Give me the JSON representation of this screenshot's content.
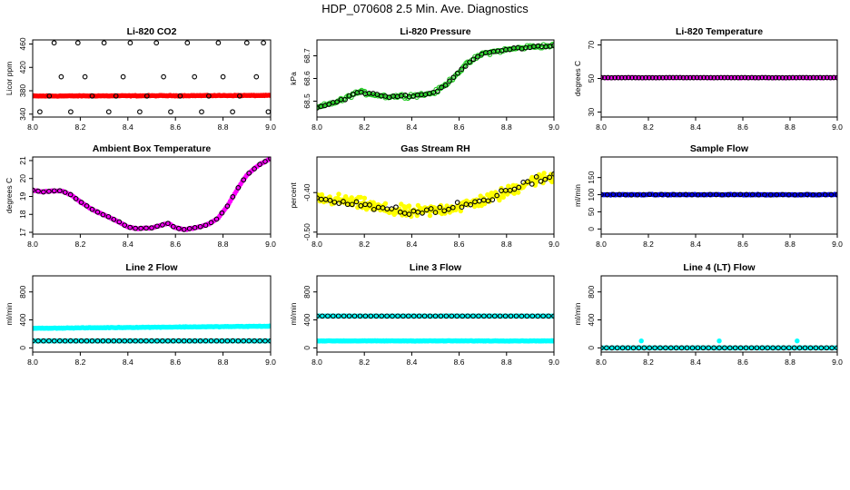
{
  "title": "HDP_070608  2.5 Min. Ave. Diagnostics",
  "chart_data": [
    {
      "type": "scatter",
      "title": "Li-820 CO2",
      "ylabel": "Licor ppm",
      "xlim": [
        8.0,
        9.0
      ],
      "xticks": [
        8.0,
        8.2,
        8.4,
        8.6,
        8.8,
        9.0
      ],
      "xtick_labels": [
        "8.0",
        "8.2",
        "8.4",
        "8.6",
        "8.8",
        "9.0"
      ],
      "ylim": [
        335,
        467
      ],
      "yticks": [
        340,
        380,
        420,
        460
      ],
      "ytick_labels": [
        "340",
        "380",
        "420",
        "460"
      ],
      "series": [
        {
          "name": "red",
          "color": "#ff0000",
          "style": "filled",
          "n": 200,
          "y0": 371,
          "y1": 372,
          "noise": 0.8
        },
        {
          "name": "black",
          "color": "#000000",
          "style": "open",
          "values_x": [
            8.03,
            8.07,
            8.09,
            8.12,
            8.16,
            8.19,
            8.22,
            8.25,
            8.3,
            8.32,
            8.35,
            8.38,
            8.41,
            8.45,
            8.48,
            8.52,
            8.55,
            8.58,
            8.62,
            8.65,
            8.68,
            8.71,
            8.74,
            8.78,
            8.8,
            8.84,
            8.87,
            8.9,
            8.94,
            8.97,
            8.99
          ],
          "values_y": [
            344,
            371,
            462,
            404,
            344,
            462,
            404,
            371,
            462,
            344,
            371,
            404,
            462,
            344,
            371,
            462,
            404,
            344,
            371,
            462,
            404,
            344,
            371,
            462,
            404,
            344,
            371,
            462,
            404,
            462,
            344
          ]
        }
      ]
    },
    {
      "type": "scatter",
      "title": "Li-820 Pressure",
      "ylabel": "kPa",
      "xlim": [
        8.0,
        9.0
      ],
      "xticks": [
        8.0,
        8.2,
        8.4,
        8.6,
        8.8,
        9.0
      ],
      "xtick_labels": [
        "8.0",
        "8.2",
        "8.4",
        "8.6",
        "8.8",
        "9.0"
      ],
      "ylim": [
        68.43,
        68.77
      ],
      "yticks": [
        68.5,
        68.6,
        68.7
      ],
      "ytick_labels": [
        "68.5",
        "68.6",
        "68.7"
      ],
      "series": [
        {
          "name": "green",
          "color": "#22cc22",
          "style": "open",
          "n": 160,
          "profile": "pressure",
          "noise": 0.012
        },
        {
          "name": "black",
          "color": "#000000",
          "style": "open",
          "n": 60,
          "profile": "pressure",
          "noise": 0.006
        }
      ]
    },
    {
      "type": "scatter",
      "title": "Li-820 Temperature",
      "ylabel": "degrees C",
      "xlim": [
        8.0,
        9.0
      ],
      "xticks": [
        8.0,
        8.2,
        8.4,
        8.6,
        8.8,
        9.0
      ],
      "xtick_labels": [
        "8.0",
        "8.2",
        "8.4",
        "8.6",
        "8.8",
        "9.0"
      ],
      "ylim": [
        27,
        73
      ],
      "yticks": [
        30,
        50,
        70
      ],
      "ytick_labels": [
        "30",
        "50",
        "70"
      ],
      "series": [
        {
          "name": "magenta",
          "color": "#ff00ff",
          "style": "filled",
          "n": 120,
          "y0": 50.5,
          "y1": 50.5,
          "noise": 0.2
        },
        {
          "name": "black",
          "color": "#000000",
          "style": "open",
          "n": 70,
          "y0": 50.5,
          "y1": 50.5,
          "noise": 0.1
        }
      ]
    },
    {
      "type": "scatter",
      "title": "Ambient Box Temperature",
      "ylabel": "degrees C",
      "xlim": [
        8.0,
        9.0
      ],
      "xticks": [
        8.0,
        8.2,
        8.4,
        8.6,
        8.8,
        9.0
      ],
      "xtick_labels": [
        "8.0",
        "8.2",
        "8.4",
        "8.6",
        "8.8",
        "9.0"
      ],
      "ylim": [
        16.9,
        21.2
      ],
      "yticks": [
        17,
        18,
        19,
        20,
        21
      ],
      "ytick_labels": [
        "17",
        "18",
        "19",
        "20",
        "21"
      ],
      "series": [
        {
          "name": "magenta",
          "color": "#ff00ff",
          "style": "filled",
          "n": 160,
          "profile": "ambient",
          "noise": 0.03
        },
        {
          "name": "black",
          "color": "#000000",
          "style": "open",
          "n": 45,
          "profile": "ambient",
          "noise": 0.02
        }
      ]
    },
    {
      "type": "scatter",
      "title": "Gas Stream RH",
      "ylabel": "percent",
      "xlim": [
        8.0,
        9.0
      ],
      "xticks": [
        8.0,
        8.2,
        8.4,
        8.6,
        8.8,
        9.0
      ],
      "xtick_labels": [
        "8.0",
        "8.2",
        "8.4",
        "8.6",
        "8.8",
        "9.0"
      ],
      "ylim": [
        -0.505,
        -0.31
      ],
      "yticks": [
        -0.5,
        -0.4
      ],
      "ytick_labels": [
        "-0.50",
        "-0.40"
      ],
      "series": [
        {
          "name": "yellow",
          "color": "#ffff00",
          "style": "filled",
          "n": 240,
          "profile": "rh",
          "noise": 0.022
        },
        {
          "name": "black",
          "color": "#000000",
          "style": "open",
          "n": 55,
          "profile": "rh",
          "noise": 0.015
        }
      ]
    },
    {
      "type": "scatter",
      "title": "Sample Flow",
      "ylabel": "ml/min",
      "xlim": [
        8.0,
        9.0
      ],
      "xticks": [
        8.0,
        8.2,
        8.4,
        8.6,
        8.8,
        9.0
      ],
      "xtick_labels": [
        "8.0",
        "8.2",
        "8.4",
        "8.6",
        "8.8",
        "9.0"
      ],
      "ylim": [
        -15,
        210
      ],
      "yticks": [
        0,
        50,
        100,
        150
      ],
      "ytick_labels": [
        "0",
        "50",
        "100",
        "150"
      ],
      "series": [
        {
          "name": "blue",
          "color": "#0000ee",
          "style": "filled",
          "n": 200,
          "y0": 100,
          "y1": 100,
          "noise": 1.5
        },
        {
          "name": "black",
          "color": "#000000",
          "style": "open",
          "n": 40,
          "y0": 100,
          "y1": 100,
          "noise": 1
        }
      ]
    },
    {
      "type": "scatter",
      "title": "Line 2 Flow",
      "ylabel": "ml/min",
      "xlim": [
        8.0,
        9.0
      ],
      "xticks": [
        8.0,
        8.2,
        8.4,
        8.6,
        8.8,
        9.0
      ],
      "xtick_labels": [
        "8.0",
        "8.2",
        "8.4",
        "8.6",
        "8.8",
        "9.0"
      ],
      "ylim": [
        -60,
        1030
      ],
      "yticks": [
        0,
        400,
        800
      ],
      "ytick_labels": [
        "0",
        "400",
        "800"
      ],
      "series": [
        {
          "name": "cyan upper",
          "color": "#00ffff",
          "style": "filled",
          "n": 200,
          "y0": 280,
          "y1": 310,
          "noise": 6
        },
        {
          "name": "cyan lower",
          "color": "#00ffff",
          "style": "filled",
          "n": 200,
          "y0": 100,
          "y1": 100,
          "noise": 2
        },
        {
          "name": "black",
          "color": "#000000",
          "style": "open",
          "n": 45,
          "y0": 100,
          "y1": 100,
          "noise": 1
        }
      ]
    },
    {
      "type": "scatter",
      "title": "Line 3 Flow",
      "ylabel": "ml/min",
      "xlim": [
        8.0,
        9.0
      ],
      "xticks": [
        8.0,
        8.2,
        8.4,
        8.6,
        8.8,
        9.0
      ],
      "xtick_labels": [
        "8.0",
        "8.2",
        "8.4",
        "8.6",
        "8.8",
        "9.0"
      ],
      "ylim": [
        -60,
        1030
      ],
      "yticks": [
        0,
        400,
        800
      ],
      "ytick_labels": [
        "0",
        "400",
        "800"
      ],
      "series": [
        {
          "name": "cyan upper",
          "color": "#00ffff",
          "style": "filled",
          "n": 200,
          "y0": 455,
          "y1": 455,
          "noise": 3
        },
        {
          "name": "cyan lower",
          "color": "#00ffff",
          "style": "filled",
          "n": 240,
          "y0": 100,
          "y1": 100,
          "noise": 5
        },
        {
          "name": "black",
          "color": "#000000",
          "style": "open",
          "n": 45,
          "y0": 455,
          "y1": 455,
          "noise": 1
        }
      ]
    },
    {
      "type": "scatter",
      "title": "Line 4 (LT) Flow",
      "ylabel": "ml/min",
      "xlim": [
        8.0,
        9.0
      ],
      "xticks": [
        8.0,
        8.2,
        8.4,
        8.6,
        8.8,
        9.0
      ],
      "xtick_labels": [
        "8.0",
        "8.2",
        "8.4",
        "8.6",
        "8.8",
        "9.0"
      ],
      "ylim": [
        -60,
        1030
      ],
      "yticks": [
        0,
        400,
        800
      ],
      "ytick_labels": [
        "0",
        "400",
        "800"
      ],
      "series": [
        {
          "name": "cyan",
          "color": "#00ffff",
          "style": "filled",
          "n": 180,
          "y0": 0,
          "y1": 0,
          "noise": 2,
          "spikes_x": [
            8.17,
            8.5,
            8.83
          ],
          "spike_y": 100
        },
        {
          "name": "black",
          "color": "#000000",
          "style": "open",
          "n": 45,
          "y0": 0,
          "y1": 0,
          "noise": 1
        }
      ]
    }
  ]
}
